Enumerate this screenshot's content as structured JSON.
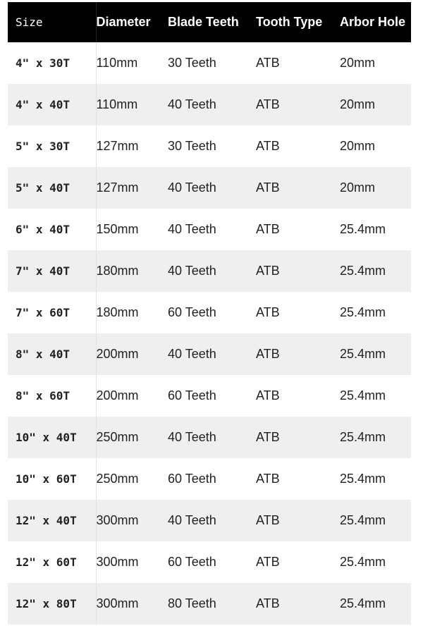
{
  "table": {
    "headers": [
      "Size",
      "Diameter",
      "Blade Teeth",
      "Tooth Type",
      "Arbor Hole"
    ],
    "rows": [
      [
        "4\" x 30T",
        "110mm",
        "30 Teeth",
        "ATB",
        "20mm"
      ],
      [
        "4\" x 40T",
        "110mm",
        "40 Teeth",
        "ATB",
        "20mm"
      ],
      [
        "5\" x 30T",
        "127mm",
        "30 Teeth",
        "ATB",
        "20mm"
      ],
      [
        "5\" x 40T",
        "127mm",
        "40 Teeth",
        "ATB",
        "20mm"
      ],
      [
        "6\" x 40T",
        "150mm",
        "40 Teeth",
        "ATB",
        "25.4mm"
      ],
      [
        "7\" x 40T",
        "180mm",
        "40 Teeth",
        "ATB",
        "25.4mm"
      ],
      [
        "7\" x 60T",
        "180mm",
        "60 Teeth",
        "ATB",
        "25.4mm"
      ],
      [
        "8\" x 40T",
        "200mm",
        "40 Teeth",
        "ATB",
        "25.4mm"
      ],
      [
        "8\" x 60T",
        "200mm",
        "60 Teeth",
        "ATB",
        "25.4mm"
      ],
      [
        "10\" x 40T",
        "250mm",
        "40 Teeth",
        "ATB",
        "25.4mm"
      ],
      [
        "10\" x 60T",
        "250mm",
        "60 Teeth",
        "ATB",
        "25.4mm"
      ],
      [
        "12\" x 40T",
        "300mm",
        "40 Teeth",
        "ATB",
        "25.4mm"
      ],
      [
        "12\" x 60T",
        "300mm",
        "60 Teeth",
        "ATB",
        "25.4mm"
      ],
      [
        "12\" x 80T",
        "300mm",
        "80 Teeth",
        "ATB",
        "25.4mm"
      ]
    ]
  }
}
